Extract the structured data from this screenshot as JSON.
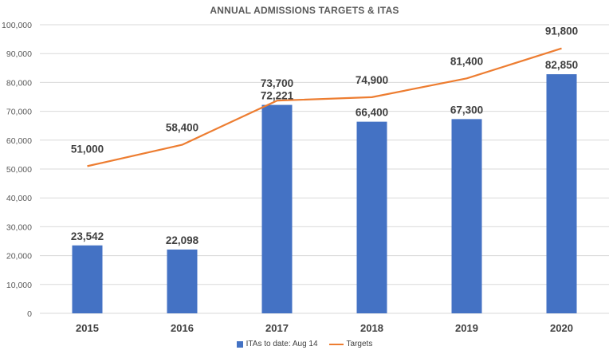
{
  "colors": {
    "bars": "#4472C4",
    "line": "#ED7D31",
    "grid": "#D9D9D9"
  },
  "chart_data": {
    "type": "bar",
    "title": "ANNUAL ADMISSIONS TARGETS & ITAS",
    "categories": [
      "2015",
      "2016",
      "2017",
      "2018",
      "2019",
      "2020"
    ],
    "ylim": [
      0,
      100000
    ],
    "ytick_values": [
      0,
      10000,
      20000,
      30000,
      40000,
      50000,
      60000,
      70000,
      80000,
      90000,
      100000
    ],
    "ytick_labels": [
      "0",
      "10,000",
      "20,000",
      "30,000",
      "40,000",
      "50,000",
      "60,000",
      "70,000",
      "80,000",
      "90,000",
      "100,000"
    ],
    "grid": true,
    "legend_position": "bottom",
    "series": [
      {
        "name": "ITAs to date: Aug 14",
        "type": "bar",
        "values": [
          23542,
          22098,
          72221,
          66400,
          67300,
          82850
        ],
        "labels": [
          "23,542",
          "22,098",
          "72,221",
          "66,400",
          "67,300",
          "82,850"
        ]
      },
      {
        "name": "Targets",
        "type": "line",
        "values": [
          51000,
          58400,
          73700,
          74900,
          81400,
          91800
        ],
        "labels": [
          "51,000",
          "58,400",
          "73,700",
          "74,900",
          "81,400",
          "91,800"
        ]
      }
    ]
  }
}
